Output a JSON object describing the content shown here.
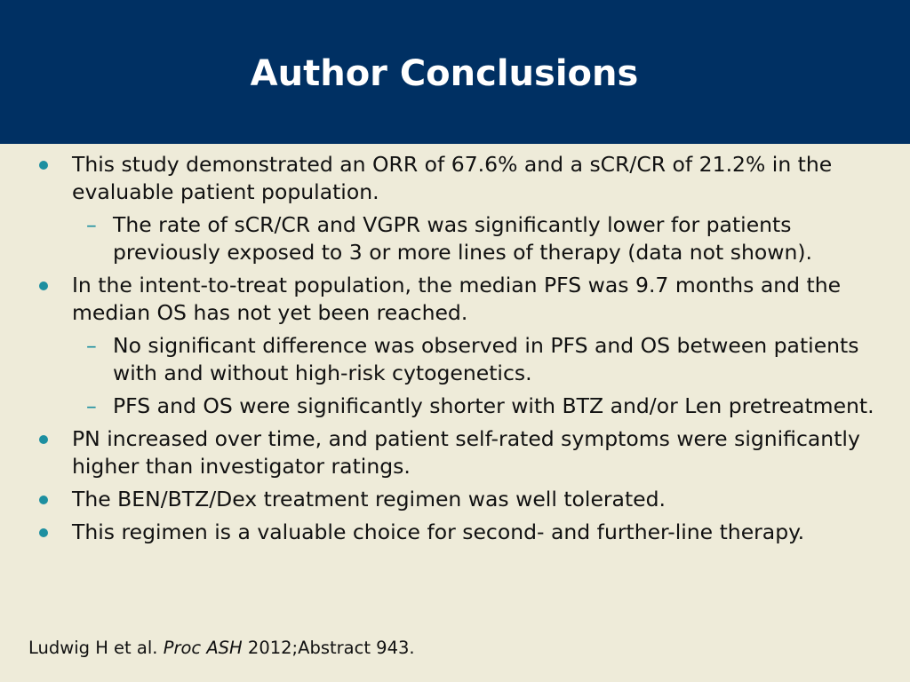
{
  "slide": {
    "title": "Author Conclusions",
    "bullets": [
      {
        "text": "This study demonstrated an ORR of 67.6% and a sCR/CR of 21.2% in the evaluable patient population.",
        "subs": [
          "The rate of sCR/CR and VGPR was significantly lower for patients previously exposed to 3 or more lines of therapy (data not shown)."
        ]
      },
      {
        "text": "In the intent-to-treat population, the median PFS was 9.7 months and the median OS has not yet been reached.",
        "subs": [
          "No significant difference was observed in PFS and OS between patients with and without high-risk cytogenetics.",
          "PFS and OS were significantly shorter with BTZ and/or Len pretreatment."
        ]
      },
      {
        "text": "PN increased over time, and patient self-rated symptoms were significantly higher than investigator ratings.",
        "subs": []
      },
      {
        "text": "The BEN/BTZ/Dex treatment regimen was well tolerated.",
        "subs": []
      },
      {
        "text": "This regimen is a valuable choice for second- and further-line therapy.",
        "subs": []
      }
    ],
    "sub_marker": "–",
    "reference": {
      "authors": "Ludwig H et al.",
      "journal": "Proc ASH",
      "citation": "2012;Abstract 943."
    },
    "colors": {
      "header_bg": "#003063",
      "body_bg": "#eeebd9",
      "bullet_accent": "#1d8fa0"
    }
  }
}
